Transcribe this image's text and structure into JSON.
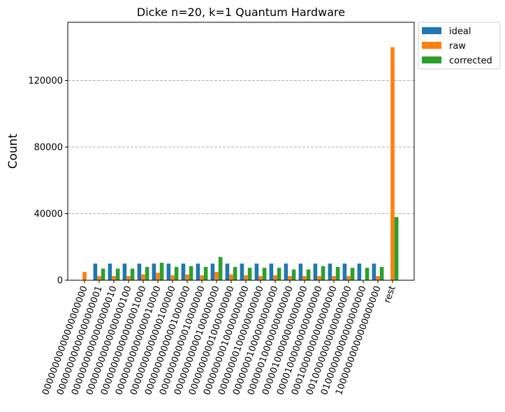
{
  "chart_data": {
    "type": "bar",
    "title": "Dicke n=20, k=1 Quantum Hardware",
    "xlabel": "",
    "ylabel": "Count",
    "ylim": [
      0,
      155000
    ],
    "yticks": [
      0,
      40000,
      80000,
      120000
    ],
    "grid": "horizontal dashed",
    "legend_position": "outside top-right",
    "categories": [
      "00000000000000000000",
      "00000000000000000001",
      "00000000000000000010",
      "00000000000000000100",
      "00000000000000001000",
      "00000000000000010000",
      "00000000000000100000",
      "00000000000001000000",
      "00000000000010000000",
      "00000000000100000000",
      "00000000001000000000",
      "00000000010000000000",
      "00000000100000000000",
      "00000001000000000000",
      "00000010000000000000",
      "00000100000000000000",
      "00001000000000000000",
      "00010000000000000000",
      "00100000000000000000",
      "01000000000000000000",
      "10000000000000000000",
      "rest"
    ],
    "series": [
      {
        "name": "ideal",
        "color": "#1f77b4",
        "values": [
          0,
          10000,
          10000,
          10000,
          10000,
          10000,
          10000,
          10000,
          10000,
          10000,
          10000,
          10000,
          10000,
          10000,
          10000,
          10000,
          10000,
          10000,
          10000,
          10000,
          10000,
          0
        ]
      },
      {
        "name": "raw",
        "color": "#ff7f0e",
        "values": [
          5000,
          2500,
          2500,
          2500,
          3500,
          4500,
          3000,
          3500,
          3000,
          5000,
          3500,
          3000,
          2500,
          3000,
          2500,
          2500,
          2500,
          2500,
          2500,
          0,
          2500,
          140000
        ]
      },
      {
        "name": "corrected",
        "color": "#2ca02c",
        "values": [
          0,
          7000,
          7000,
          7000,
          8000,
          10500,
          8000,
          8500,
          8000,
          14000,
          8000,
          7500,
          7500,
          7500,
          6500,
          6500,
          8500,
          8000,
          7500,
          7500,
          8000,
          38000
        ]
      }
    ]
  }
}
